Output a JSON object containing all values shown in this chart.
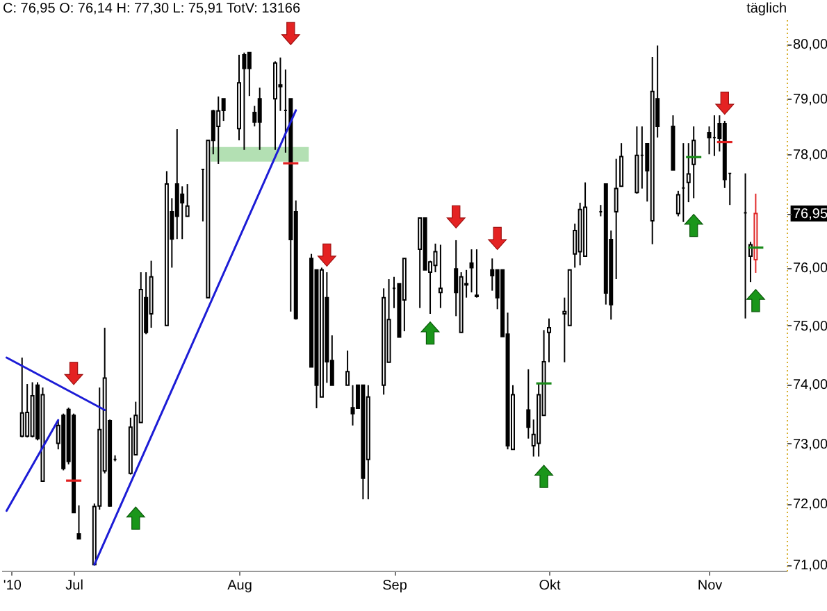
{
  "chart_data": {
    "type": "candlestick",
    "title": "C: 76,95 O: 76,14 H: 77,30 L: 75,91 TotV: 13166",
    "annotations": [
      "täglich"
    ],
    "x": [
      "2010-06-21",
      "2010-06-22",
      "2010-06-23",
      "2010-06-24",
      "2010-06-25",
      "2010-06-28",
      "2010-06-29",
      "2010-06-30",
      "2010-07-01",
      "2010-07-02",
      "2010-07-05",
      "2010-07-06",
      "2010-07-07",
      "2010-07-08",
      "2010-07-09",
      "2010-07-12",
      "2010-07-13",
      "2010-07-14",
      "2010-07-15",
      "2010-07-16",
      "2010-07-19",
      "2010-07-20",
      "2010-07-21",
      "2010-07-22",
      "2010-07-23",
      "2010-07-26",
      "2010-07-27",
      "2010-07-28",
      "2010-07-29",
      "2010-07-30",
      "2010-08-02",
      "2010-08-03",
      "2010-08-04",
      "2010-08-05",
      "2010-08-06",
      "2010-08-09",
      "2010-08-10",
      "2010-08-11",
      "2010-08-12",
      "2010-08-13",
      "2010-08-16",
      "2010-08-17",
      "2010-08-18",
      "2010-08-19",
      "2010-08-20",
      "2010-08-23",
      "2010-08-24",
      "2010-08-25",
      "2010-08-26",
      "2010-08-27",
      "2010-08-30",
      "2010-08-31",
      "2010-09-01",
      "2010-09-02",
      "2010-09-03",
      "2010-09-06",
      "2010-09-07",
      "2010-09-08",
      "2010-09-09",
      "2010-09-10",
      "2010-09-13",
      "2010-09-14",
      "2010-09-15",
      "2010-09-16",
      "2010-09-17",
      "2010-09-20",
      "2010-09-21",
      "2010-09-22",
      "2010-09-23",
      "2010-09-24",
      "2010-09-27",
      "2010-09-28",
      "2010-09-29",
      "2010-09-30",
      "2010-10-01",
      "2010-10-04",
      "2010-10-05",
      "2010-10-06",
      "2010-10-07",
      "2010-10-08",
      "2010-10-11",
      "2010-10-12",
      "2010-10-13",
      "2010-10-14",
      "2010-10-15",
      "2010-10-18",
      "2010-10-19",
      "2010-10-20",
      "2010-10-21",
      "2010-10-22",
      "2010-10-25",
      "2010-10-26",
      "2010-10-27",
      "2010-10-28",
      "2010-10-29",
      "2010-11-01",
      "2010-11-02",
      "2010-11-03",
      "2010-11-04",
      "2010-11-05",
      "2010-11-08",
      "2010-11-09",
      "2010-11-10"
    ],
    "ohlc": [
      [
        73.12,
        74.45,
        73.1,
        73.51
      ],
      [
        73.12,
        74.0,
        73.1,
        73.52
      ],
      [
        73.12,
        74.03,
        73.1,
        73.8
      ],
      [
        73.98,
        74.03,
        73.05,
        73.08
      ],
      [
        72.37,
        73.94,
        72.37,
        73.82
      ],
      [
        73.0,
        73.4,
        72.9,
        73.3
      ],
      [
        73.47,
        73.5,
        72.55,
        72.58
      ],
      [
        73.57,
        73.6,
        72.65,
        72.7
      ],
      [
        73.47,
        73.5,
        71.85,
        71.85
      ],
      [
        71.5,
        71.97,
        71.42,
        71.42
      ],
      [
        71.0,
        72.0,
        71.0,
        71.95
      ],
      [
        71.96,
        73.94,
        71.9,
        73.23
      ],
      [
        72.54,
        74.96,
        72.5,
        74.1
      ],
      [
        73.38,
        73.4,
        71.95,
        71.96
      ],
      [
        72.73,
        72.8,
        72.7,
        72.73
      ],
      [
        72.5,
        73.43,
        72.48,
        73.27
      ],
      [
        72.81,
        73.7,
        72.8,
        73.47
      ],
      [
        73.35,
        75.92,
        73.35,
        75.62
      ],
      [
        75.48,
        75.92,
        74.85,
        74.88
      ],
      [
        75.2,
        76.12,
        74.96,
        75.84
      ],
      [
        75.0,
        77.7,
        75.0,
        77.47
      ],
      [
        76.98,
        77.22,
        76.0,
        76.5
      ],
      [
        77.47,
        78.45,
        76.5,
        76.9
      ],
      [
        77.29,
        77.43,
        76.5,
        77.14
      ],
      [
        76.9,
        77.47,
        76.9,
        77.08
      ],
      [
        77.73,
        77.73,
        76.81,
        77.73
      ],
      [
        75.48,
        78.25,
        75.48,
        78.25
      ],
      [
        78.78,
        78.8,
        78.0,
        78.25
      ],
      [
        78.5,
        79.04,
        77.83,
        78.78
      ],
      [
        79.0,
        79.0,
        78.6,
        78.79
      ],
      [
        78.46,
        79.8,
        78.25,
        79.29
      ],
      [
        79.8,
        79.84,
        78.08,
        79.55
      ],
      [
        79.84,
        79.84,
        79.05,
        79.55
      ],
      [
        78.75,
        78.87,
        78.5,
        78.58
      ],
      [
        79.0,
        79.2,
        78.08,
        78.58
      ],
      [
        79.0,
        79.68,
        78.08,
        79.65
      ],
      [
        79.25,
        79.75,
        78.78,
        79.22
      ],
      [
        78.79,
        79.53,
        78.03,
        78.79
      ],
      [
        79.0,
        79.0,
        75.24,
        76.49
      ],
      [
        76.98,
        77.18,
        75.1,
        75.12
      ],
      [
        76.16,
        76.24,
        74.29,
        74.29
      ],
      [
        75.96,
        75.96,
        73.59,
        73.98
      ],
      [
        73.78,
        76.0,
        73.78,
        75.96
      ],
      [
        75.48,
        75.92,
        74.02,
        74.38
      ],
      [
        74.4,
        74.83,
        73.98,
        73.98
      ],
      [
        73.98,
        74.57,
        73.98,
        74.21
      ],
      [
        73.6,
        73.98,
        73.3,
        73.5
      ],
      [
        73.98,
        73.98,
        73.59,
        73.59
      ],
      [
        73.98,
        73.98,
        72.07,
        72.42
      ],
      [
        72.73,
        73.98,
        72.07,
        73.78
      ],
      [
        73.98,
        75.64,
        73.82,
        75.48
      ],
      [
        74.37,
        75.8,
        74.37,
        75.1
      ],
      [
        75.64,
        75.84,
        75.3,
        75.64
      ],
      [
        75.72,
        75.72,
        74.8,
        74.8
      ],
      [
        75.44,
        76.16,
        74.9,
        76.16
      ],
      [
        76.32,
        76.87,
        75.3,
        76.87
      ],
      [
        76.87,
        76.87,
        75.96,
        75.96
      ],
      [
        75.92,
        76.12,
        75.2,
        76.1
      ],
      [
        76.04,
        76.42,
        75.92,
        76.28
      ],
      [
        75.57,
        76.4,
        75.3,
        75.64
      ],
      [
        75.98,
        76.48,
        75.16,
        75.57
      ],
      [
        74.88,
        75.92,
        74.88,
        75.84
      ],
      [
        75.7,
        75.96,
        75.48,
        75.72
      ],
      [
        76.08,
        76.32,
        75.57,
        76.0
      ],
      [
        75.5,
        76.32,
        75.48,
        75.52
      ],
      [
        75.96,
        76.16,
        75.6,
        75.86
      ],
      [
        75.96,
        75.96,
        75.28,
        75.48
      ],
      [
        75.96,
        75.96,
        74.81,
        74.81
      ],
      [
        74.85,
        75.22,
        72.9,
        72.96
      ],
      [
        72.9,
        73.98,
        72.9,
        73.82
      ],
      [
        73.56,
        74.25,
        73.08,
        73.27
      ],
      [
        72.96,
        73.4,
        72.78,
        73.15
      ],
      [
        73.0,
        74.0,
        72.78,
        73.82
      ],
      [
        73.47,
        74.92,
        73.47,
        74.38
      ],
      [
        74.88,
        75.12,
        74.37,
        74.96
      ],
      [
        75.2,
        75.48,
        74.37,
        75.24
      ],
      [
        75.0,
        75.96,
        75.0,
        75.96
      ],
      [
        76.24,
        76.77,
        76.0,
        76.65
      ],
      [
        76.28,
        77.14,
        76.04,
        77.02
      ],
      [
        76.2,
        77.5,
        76.2,
        77.06
      ],
      [
        76.98,
        77.1,
        76.9,
        76.98
      ],
      [
        77.47,
        77.47,
        75.36,
        75.56
      ],
      [
        76.49,
        76.65,
        75.1,
        75.36
      ],
      [
        76.98,
        77.92,
        75.8,
        77.39
      ],
      [
        77.43,
        78.2,
        77.43,
        77.96
      ],
      [
        77.32,
        78.5,
        77.3,
        77.98
      ],
      [
        77.98,
        78.5,
        77.39,
        77.98
      ],
      [
        78.19,
        78.19,
        77.16,
        77.71
      ],
      [
        76.82,
        79.76,
        76.41,
        79.13
      ],
      [
        79.0,
        79.97,
        78.3,
        78.5
      ],
      [
        78.5,
        78.7,
        77.72,
        77.72
      ],
      [
        76.95,
        77.35,
        76.9,
        77.28
      ],
      [
        77.4,
        78.2,
        76.8,
        77.4
      ],
      [
        77.5,
        78.2,
        77.15,
        77.65
      ],
      [
        77.82,
        78.5,
        77.22,
        78.25
      ],
      [
        78.39,
        78.5,
        78.0,
        78.3
      ],
      [
        78.3,
        78.7,
        77.97,
        78.3
      ],
      [
        78.55,
        78.7,
        78.05,
        78.29
      ],
      [
        78.55,
        78.6,
        77.4,
        77.55
      ],
      [
        77.66,
        77.66,
        77.1,
        77.66
      ],
      [
        76.96,
        77.66,
        75.12,
        76.96
      ],
      [
        76.2,
        76.45,
        75.75,
        76.4
      ],
      [
        76.14,
        77.3,
        75.91,
        76.95
      ]
    ],
    "colors": [
      "#000000",
      "#000000",
      "#000000",
      "#000000",
      "#000000",
      "#000000",
      "#000000",
      "#000000",
      "#000000",
      "#000000",
      "#000000",
      "#000000",
      "#000000",
      "#000000",
      "#000000",
      "#000000",
      "#000000",
      "#000000",
      "#000000",
      "#000000",
      "#000000",
      "#000000",
      "#000000",
      "#000000",
      "#000000",
      "#000000",
      "#000000",
      "#000000",
      "#000000",
      "#000000",
      "#000000",
      "#000000",
      "#000000",
      "#000000",
      "#000000",
      "#000000",
      "#000000",
      "#000000",
      "#000000",
      "#000000",
      "#000000",
      "#000000",
      "#000000",
      "#000000",
      "#000000",
      "#000000",
      "#000000",
      "#000000",
      "#000000",
      "#000000",
      "#000000",
      "#000000",
      "#000000",
      "#000000",
      "#000000",
      "#000000",
      "#000000",
      "#000000",
      "#000000",
      "#000000",
      "#000000",
      "#000000",
      "#000000",
      "#000000",
      "#000000",
      "#000000",
      "#000000",
      "#000000",
      "#000000",
      "#000000",
      "#000000",
      "#000000",
      "#000000",
      "#000000",
      "#000000",
      "#000000",
      "#000000",
      "#000000",
      "#000000",
      "#000000",
      "#000000",
      "#000000",
      "#000000",
      "#000000",
      "#000000",
      "#000000",
      "#000000",
      "#000000",
      "#000000",
      "#000000",
      "#000000",
      "#000000",
      "#000000",
      "#000000",
      "#000000",
      "#000000",
      "#000000",
      "#000000",
      "#000000",
      "#000000",
      "#000000",
      "#000000",
      "#e02828"
    ],
    "series": [
      {
        "type": "line",
        "color": "#1c1cd6",
        "x": [
          "2010-06-18",
          "2010-07-07"
        ],
        "values": [
          74.45,
          73.56
        ]
      },
      {
        "type": "line",
        "color": "#1c1cd6",
        "x": [
          "2010-06-18",
          "2010-06-28"
        ],
        "values": [
          71.88,
          73.39
        ]
      },
      {
        "type": "line",
        "color": "#1c1cd6",
        "x": [
          "2010-07-05",
          "2010-08-13"
        ],
        "values": [
          71.0,
          78.79
        ]
      }
    ],
    "xlim": [
      "2010-06-17",
      "2010-11-16"
    ],
    "xticks": [
      {
        "value": "2010-06-19",
        "label": "'10"
      },
      {
        "value": "2010-07-01",
        "label": "Jul"
      },
      {
        "value": "2010-08-02",
        "label": "Aug"
      },
      {
        "value": "2010-09-01",
        "label": "Sep"
      },
      {
        "value": "2010-10-01",
        "label": "Okt"
      },
      {
        "value": "2010-11-01",
        "label": "Nov"
      }
    ],
    "ylim": [
      70.9,
      80.5
    ],
    "yticks": [
      {
        "value": 71,
        "label": "71,00"
      },
      {
        "value": 72,
        "label": "72,00"
      },
      {
        "value": 73,
        "label": "73,00"
      },
      {
        "value": 74,
        "label": "74,00"
      },
      {
        "value": 75,
        "label": "75,00"
      },
      {
        "value": 76,
        "label": "76,00"
      },
      {
        "value": 76.95,
        "label": "76,95"
      },
      {
        "value": 78,
        "label": "78,00"
      },
      {
        "value": 79,
        "label": "79,00"
      },
      {
        "value": 80,
        "label": "80,00"
      }
    ],
    "log": "y"
  }
}
